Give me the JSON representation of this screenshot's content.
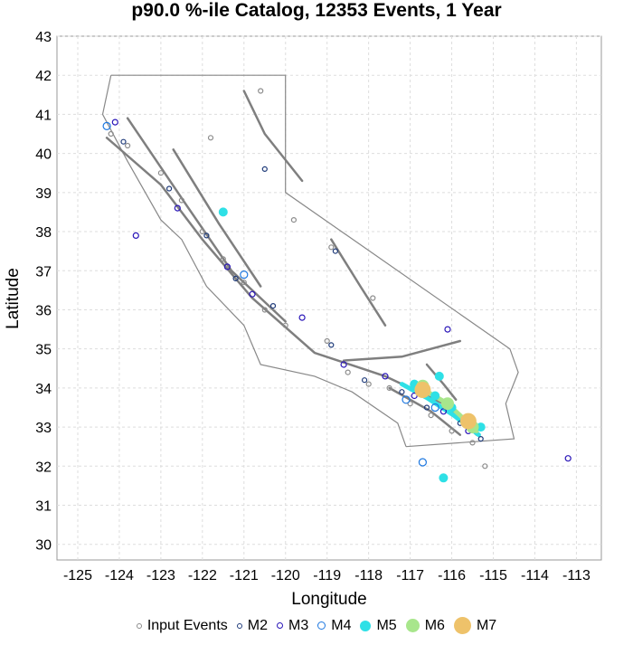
{
  "chart_data": {
    "type": "scatter",
    "title": "p90.0 %-ile Catalog, 12353 Events, 1 Year",
    "xlabel": "Longitude",
    "ylabel": "Latitude",
    "xlim": [
      -125.5,
      -112.4
    ],
    "ylim": [
      29.6,
      43.0
    ],
    "grid": true,
    "legend_placement": "bottom",
    "x_ticks": [
      "-125",
      "-124",
      "-123",
      "-122",
      "-121",
      "-120",
      "-119",
      "-118",
      "-117",
      "-116",
      "-115",
      "-114",
      "-113"
    ],
    "y_ticks": [
      "30",
      "31",
      "32",
      "33",
      "34",
      "35",
      "36",
      "37",
      "38",
      "39",
      "40",
      "41",
      "42",
      "43"
    ],
    "series": [
      {
        "name": "Input Events",
        "color": "#8c8c8c",
        "marker": "open-circle",
        "points": [
          [
            -124.2,
            40.5
          ],
          [
            -123.8,
            40.2
          ],
          [
            -123.0,
            39.5
          ],
          [
            -122.5,
            38.8
          ],
          [
            -122.0,
            38.0
          ],
          [
            -121.5,
            37.3
          ],
          [
            -121.0,
            36.7
          ],
          [
            -120.5,
            36.0
          ],
          [
            -120.0,
            35.6
          ],
          [
            -119.0,
            35.2
          ],
          [
            -118.5,
            34.4
          ],
          [
            -118.0,
            34.1
          ],
          [
            -117.5,
            34.0
          ],
          [
            -117.0,
            33.6
          ],
          [
            -116.5,
            33.3
          ],
          [
            -116.0,
            32.9
          ],
          [
            -115.5,
            32.6
          ],
          [
            -118.9,
            37.6
          ],
          [
            -121.8,
            40.4
          ],
          [
            -120.6,
            41.6
          ],
          [
            -115.2,
            32.0
          ],
          [
            -117.9,
            36.3
          ],
          [
            -119.8,
            38.3
          ]
        ]
      },
      {
        "name": "M2",
        "color": "#1f3b7a",
        "marker": "open-circle",
        "points": [
          [
            -123.9,
            40.3
          ],
          [
            -122.8,
            39.1
          ],
          [
            -121.9,
            37.9
          ],
          [
            -121.2,
            36.8
          ],
          [
            -120.3,
            36.1
          ],
          [
            -118.9,
            35.1
          ],
          [
            -118.1,
            34.2
          ],
          [
            -117.2,
            33.9
          ],
          [
            -116.6,
            33.5
          ],
          [
            -115.8,
            33.1
          ],
          [
            -115.3,
            32.7
          ],
          [
            -118.8,
            37.5
          ],
          [
            -120.5,
            39.6
          ]
        ]
      },
      {
        "name": "M3",
        "color": "#2a16b8",
        "marker": "open-circle",
        "points": [
          [
            -124.1,
            40.8
          ],
          [
            -122.6,
            38.6
          ],
          [
            -121.4,
            37.1
          ],
          [
            -120.8,
            36.4
          ],
          [
            -119.6,
            35.8
          ],
          [
            -118.6,
            34.6
          ],
          [
            -117.6,
            34.3
          ],
          [
            -116.9,
            33.8
          ],
          [
            -116.2,
            33.4
          ],
          [
            -115.6,
            32.9
          ],
          [
            -123.6,
            37.9
          ],
          [
            -116.1,
            35.5
          ],
          [
            -113.2,
            32.2
          ]
        ]
      },
      {
        "name": "M4",
        "color": "#1e78e0",
        "marker": "open-circle",
        "points": [
          [
            -121.0,
            36.9
          ],
          [
            -117.1,
            33.7
          ],
          [
            -116.4,
            33.5
          ],
          [
            -115.5,
            33.0
          ],
          [
            -124.3,
            40.7
          ],
          [
            -116.7,
            32.1
          ]
        ]
      },
      {
        "name": "M5",
        "color": "#2ee0e6",
        "marker": "filled-circle",
        "points": [
          [
            -121.5,
            38.5
          ],
          [
            -116.9,
            34.1
          ],
          [
            -116.4,
            33.8
          ],
          [
            -116.0,
            33.5
          ],
          [
            -115.6,
            33.2
          ],
          [
            -115.3,
            33.0
          ],
          [
            -116.3,
            34.3
          ],
          [
            -116.2,
            31.7
          ]
        ]
      },
      {
        "name": "M6",
        "color": "#a8e68c",
        "marker": "filled-circle",
        "points": [
          [
            -116.7,
            34.05
          ],
          [
            -116.1,
            33.6
          ],
          [
            -115.5,
            33.0
          ]
        ]
      },
      {
        "name": "M7",
        "color": "#eec26a",
        "marker": "filled-circle",
        "points": [
          [
            -116.7,
            33.95
          ],
          [
            -115.6,
            33.15
          ]
        ]
      }
    ],
    "overlays": {
      "border_color": "#888888",
      "fault_color": "#7f7f7f",
      "state_border": [
        [
          -124.2,
          42.0
        ],
        [
          -120.0,
          42.0
        ],
        [
          -120.0,
          39.0
        ],
        [
          -114.6,
          35.0
        ],
        [
          -114.4,
          34.4
        ],
        [
          -114.7,
          33.6
        ],
        [
          -114.5,
          32.7
        ],
        [
          -117.1,
          32.5
        ]
      ],
      "coastline": [
        [
          -124.2,
          42.0
        ],
        [
          -124.4,
          41.0
        ],
        [
          -123.8,
          39.8
        ],
        [
          -123.0,
          38.3
        ],
        [
          -122.5,
          37.8
        ],
        [
          -121.9,
          36.6
        ],
        [
          -121.0,
          35.6
        ],
        [
          -120.6,
          34.6
        ],
        [
          -119.3,
          34.3
        ],
        [
          -118.4,
          33.9
        ],
        [
          -117.3,
          33.1
        ],
        [
          -117.1,
          32.5
        ]
      ],
      "faults": [
        [
          [
            -124.3,
            40.4
          ],
          [
            -123.0,
            39.2
          ],
          [
            -122.0,
            37.8
          ],
          [
            -120.8,
            36.3
          ],
          [
            -119.3,
            34.9
          ],
          [
            -117.6,
            34.3
          ],
          [
            -116.2,
            33.6
          ],
          [
            -115.4,
            32.8
          ]
        ],
        [
          [
            -123.8,
            40.9
          ],
          [
            -122.4,
            38.7
          ],
          [
            -121.3,
            37.0
          ],
          [
            -120.0,
            35.7
          ]
        ],
        [
          [
            -122.7,
            40.1
          ],
          [
            -121.6,
            38.2
          ],
          [
            -120.6,
            36.6
          ]
        ],
        [
          [
            -121.0,
            41.6
          ],
          [
            -120.5,
            40.5
          ],
          [
            -119.6,
            39.3
          ]
        ],
        [
          [
            -118.9,
            37.8
          ],
          [
            -118.2,
            36.6
          ],
          [
            -117.6,
            35.6
          ]
        ],
        [
          [
            -118.6,
            34.7
          ],
          [
            -117.2,
            34.8
          ],
          [
            -115.8,
            35.2
          ]
        ],
        [
          [
            -117.5,
            34.0
          ],
          [
            -116.5,
            33.4
          ],
          [
            -115.8,
            32.8
          ]
        ],
        [
          [
            -116.6,
            34.6
          ],
          [
            -116.2,
            34.1
          ],
          [
            -115.9,
            33.7
          ]
        ]
      ],
      "rupture_traces": [
        {
          "color": "#2ee0e6",
          "path": [
            [
              -117.2,
              34.1
            ],
            [
              -116.6,
              33.75
            ],
            [
              -115.95,
              33.3
            ],
            [
              -115.35,
              32.8
            ]
          ]
        },
        {
          "color": "#a8e68c",
          "path": [
            [
              -116.9,
              34.1
            ],
            [
              -116.1,
              33.6
            ],
            [
              -115.4,
              32.9
            ]
          ]
        }
      ]
    }
  },
  "legend": [
    {
      "label": "Input Events",
      "color": "#8c8c8c",
      "size": 6,
      "fill": false
    },
    {
      "label": "M2",
      "color": "#1f3b7a",
      "size": 6,
      "fill": false
    },
    {
      "label": "M3",
      "color": "#2a16b8",
      "size": 7,
      "fill": false
    },
    {
      "label": "M4",
      "color": "#1e78e0",
      "size": 9,
      "fill": false
    },
    {
      "label": "M5",
      "color": "#2ee0e6",
      "size": 12,
      "fill": true
    },
    {
      "label": "M6",
      "color": "#a8e68c",
      "size": 15,
      "fill": true
    },
    {
      "label": "M7",
      "color": "#eec26a",
      "size": 19,
      "fill": true
    }
  ]
}
